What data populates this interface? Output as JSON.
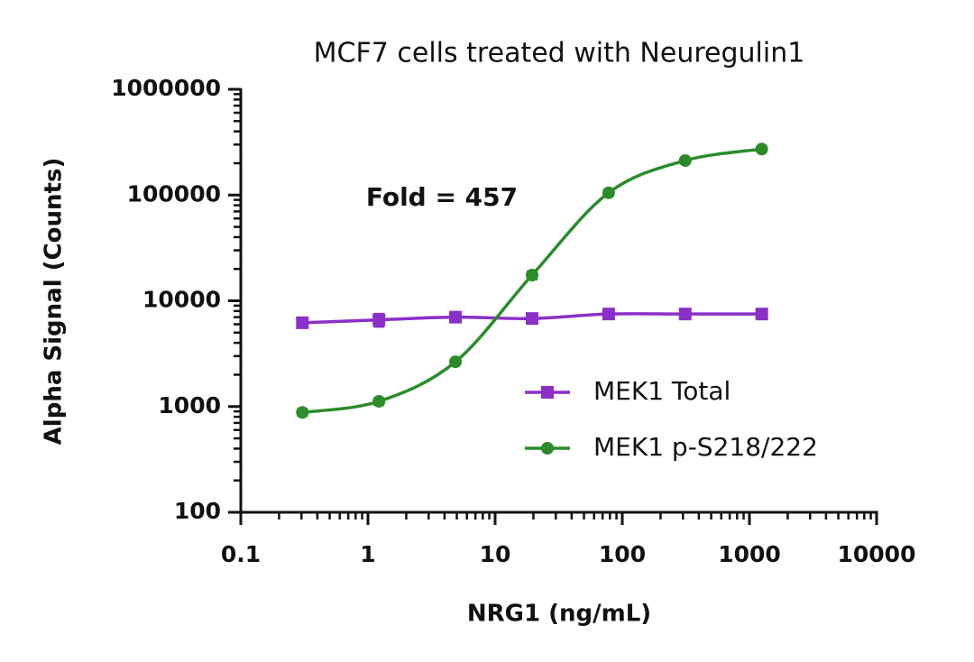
{
  "chart_data": {
    "type": "line",
    "title": "MCF7 cells treated with Neuregulin1",
    "xlabel": "NRG1 (ng/mL)",
    "ylabel": "Alpha Signal (Counts)",
    "annotation": "Fold = 457",
    "x": [
      0.305,
      1.22,
      4.88,
      19.53,
      78.125,
      312.5,
      1250
    ],
    "series": [
      {
        "name": "MEK1 Total",
        "color": "#8b2fc9",
        "marker": "square",
        "values": [
          6200,
          6600,
          7000,
          6800,
          7500,
          7500,
          7500
        ],
        "errors": [
          300,
          900,
          350,
          300,
          250,
          250,
          250
        ]
      },
      {
        "name": "MEK1 p-S218/222",
        "color": "#2a8c2a",
        "marker": "circle",
        "values": [
          880,
          1120,
          2650,
          17500,
          105000,
          212000,
          272000
        ],
        "errors": [
          60,
          80,
          150,
          1500,
          6000,
          8000,
          8000
        ]
      }
    ],
    "log_x": true,
    "log_y": true,
    "xlim": [
      0.1,
      10000
    ],
    "xticks": [
      0.1,
      1,
      10,
      100,
      1000,
      10000
    ],
    "ylim": [
      100,
      1000000
    ],
    "yticks": [
      100,
      1000,
      10000,
      100000,
      1000000
    ],
    "legend": "lower right",
    "grid": false
  }
}
